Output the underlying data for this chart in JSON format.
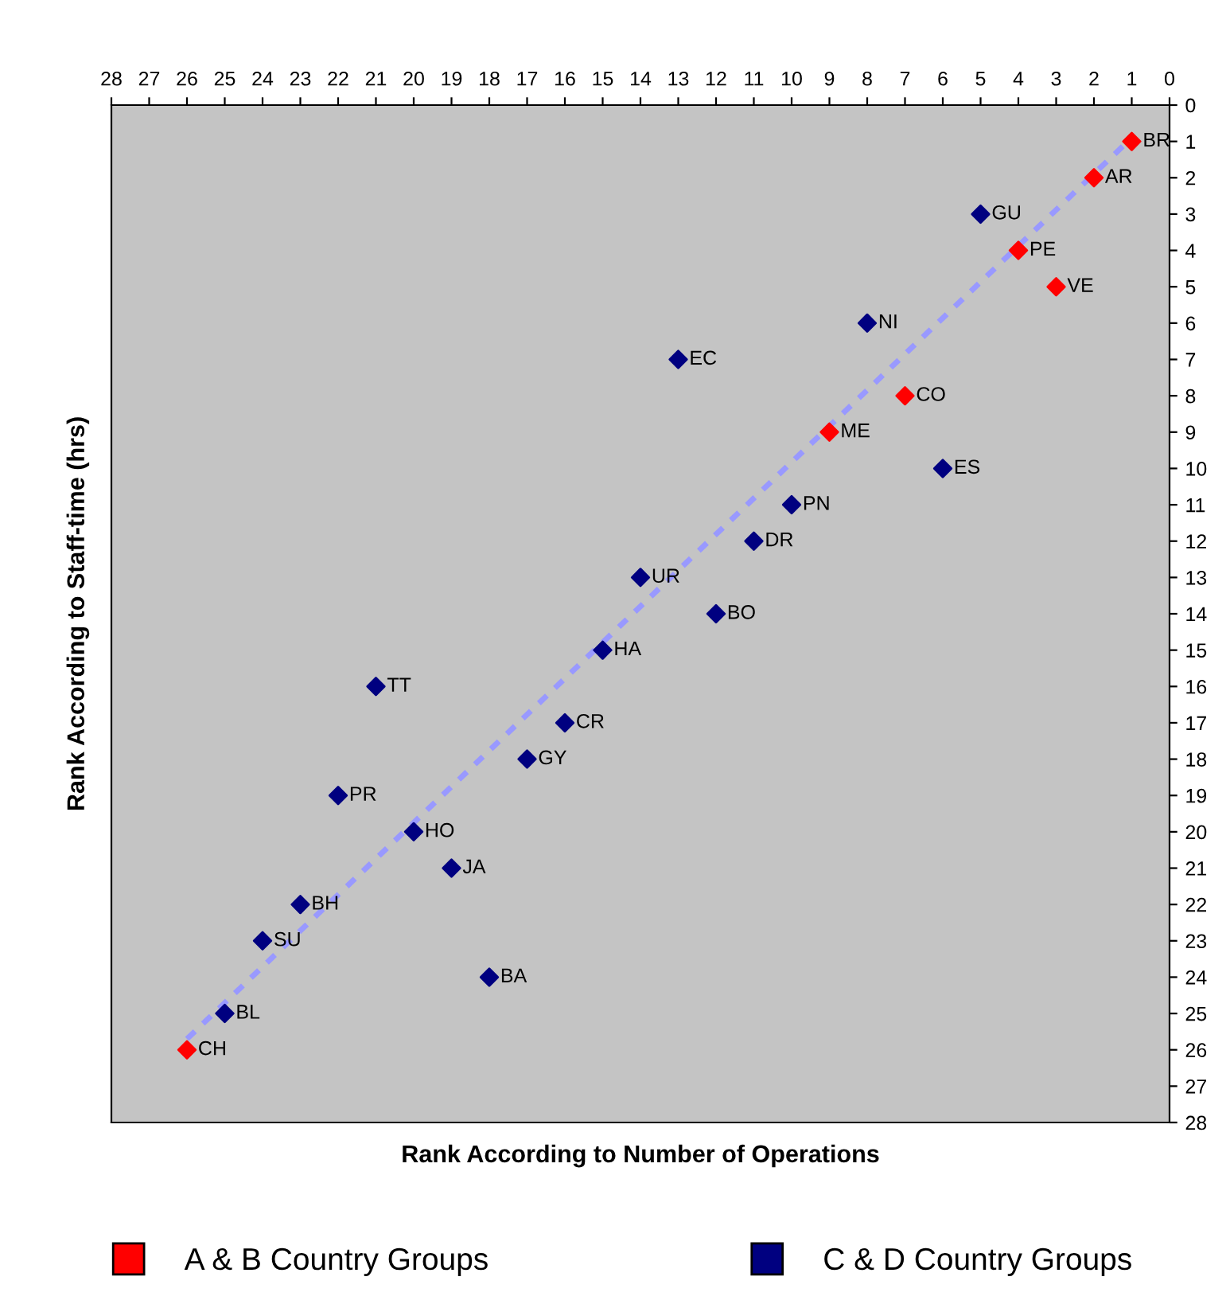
{
  "chart_data": {
    "type": "scatter",
    "xlabel": "Rank According to Number of Operations",
    "ylabel": "Rank According to Staff-time (hrs)",
    "xlim": [
      28,
      0
    ],
    "ylim": [
      28,
      0
    ],
    "xticks": [
      28,
      27,
      26,
      25,
      24,
      23,
      22,
      21,
      20,
      19,
      18,
      17,
      16,
      15,
      14,
      13,
      12,
      11,
      10,
      9,
      8,
      7,
      6,
      5,
      4,
      3,
      2,
      1,
      0
    ],
    "yticks": [
      0,
      1,
      2,
      3,
      4,
      5,
      6,
      7,
      8,
      9,
      10,
      11,
      12,
      13,
      14,
      15,
      16,
      17,
      18,
      19,
      20,
      21,
      22,
      23,
      24,
      25,
      26,
      27,
      28
    ],
    "grid": false,
    "legend": "bottom",
    "marker": "diamond",
    "series": [
      {
        "name": "A & B Country Groups",
        "color": "#ff0000",
        "x": [
          1,
          2,
          4,
          3,
          7,
          9,
          26
        ],
        "values": [
          1,
          2,
          4,
          5,
          8,
          9,
          26
        ]
      },
      {
        "name": "C & D Country Groups",
        "color": "#000080",
        "x": [
          5,
          8,
          13,
          6,
          10,
          11,
          14,
          12,
          15,
          21,
          16,
          17,
          22,
          20,
          19,
          23,
          24,
          18,
          25
        ],
        "values": [
          3,
          6,
          7,
          10,
          11,
          12,
          13,
          14,
          15,
          16,
          17,
          18,
          19,
          20,
          21,
          22,
          23,
          24,
          25
        ]
      },
      {
        "type": "line",
        "marker": "none",
        "color": "#9999ff",
        "line_style": "dashed",
        "x": [
          26,
          1
        ],
        "values": [
          25.7,
          0.9
        ]
      }
    ],
    "annotations": [
      {
        "text": "BR",
        "x": 1,
        "y": 1
      },
      {
        "text": "AR",
        "x": 2,
        "y": 2
      },
      {
        "text": "GU",
        "x": 5,
        "y": 3
      },
      {
        "text": "PE",
        "x": 4,
        "y": 4
      },
      {
        "text": "VE",
        "x": 3,
        "y": 5
      },
      {
        "text": "NI",
        "x": 8,
        "y": 6
      },
      {
        "text": "EC",
        "x": 13,
        "y": 7
      },
      {
        "text": "CO",
        "x": 7,
        "y": 8
      },
      {
        "text": "ME",
        "x": 9,
        "y": 9
      },
      {
        "text": "ES",
        "x": 6,
        "y": 10
      },
      {
        "text": "PN",
        "x": 10,
        "y": 11
      },
      {
        "text": "DR",
        "x": 11,
        "y": 12
      },
      {
        "text": "UR",
        "x": 14,
        "y": 13
      },
      {
        "text": "BO",
        "x": 12,
        "y": 14
      },
      {
        "text": "HA",
        "x": 15,
        "y": 15
      },
      {
        "text": "TT",
        "x": 21,
        "y": 16
      },
      {
        "text": "CR",
        "x": 16,
        "y": 17
      },
      {
        "text": "GY",
        "x": 17,
        "y": 18
      },
      {
        "text": "PR",
        "x": 22,
        "y": 19
      },
      {
        "text": "HO",
        "x": 20,
        "y": 20
      },
      {
        "text": "JA",
        "x": 19,
        "y": 21
      },
      {
        "text": "BH",
        "x": 23,
        "y": 22
      },
      {
        "text": "SU",
        "x": 24,
        "y": 23
      },
      {
        "text": "BA",
        "x": 18,
        "y": 24
      },
      {
        "text": "BL",
        "x": 25,
        "y": 25
      },
      {
        "text": "CH",
        "x": 26,
        "y": 26
      }
    ]
  }
}
